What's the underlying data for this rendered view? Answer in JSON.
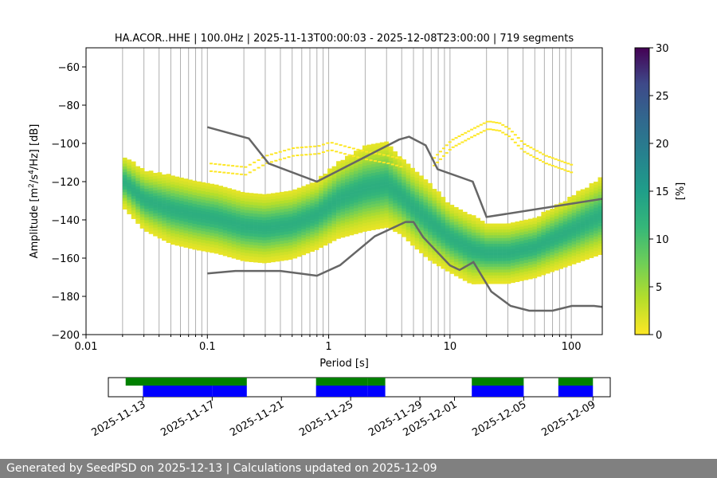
{
  "chart_data": {
    "type": "heatmap",
    "title": "HA.ACOR..HHE | 100.0Hz | 2025-11-13T00:00:03 - 2025-12-08T23:00:00 | 719 segments",
    "xlabel": "Period [s]",
    "ylabel_main": "Amplitude [m",
    "ylabel_sup1": "2",
    "ylabel_mid": "/s",
    "ylabel_sup2": "4",
    "ylabel_end": "/Hz] [dB]",
    "x_scale": "log",
    "xlim": [
      0.01,
      180
    ],
    "ylim": [
      -200,
      -50
    ],
    "grid": true,
    "xticks": [
      {
        "value": 0.01,
        "label": "0.01"
      },
      {
        "value": 0.1,
        "label": "0.1"
      },
      {
        "value": 1,
        "label": "1"
      },
      {
        "value": 10,
        "label": "10"
      },
      {
        "value": 100,
        "label": "100"
      }
    ],
    "yticks": [
      {
        "value": -60,
        "label": "−60"
      },
      {
        "value": -80,
        "label": "−80"
      },
      {
        "value": -100,
        "label": "−100"
      },
      {
        "value": -120,
        "label": "−120"
      },
      {
        "value": -140,
        "label": "−140"
      },
      {
        "value": -160,
        "label": "−160"
      },
      {
        "value": -180,
        "label": "−180"
      },
      {
        "value": -200,
        "label": "−200"
      }
    ],
    "colorbar": {
      "label": "[%]",
      "range": [
        0,
        30
      ],
      "colormap": "viridis_r",
      "ticks": [
        {
          "value": 0,
          "label": "0"
        },
        {
          "value": 5,
          "label": "5"
        },
        {
          "value": 10,
          "label": "10"
        },
        {
          "value": 15,
          "label": "15"
        },
        {
          "value": 20,
          "label": "20"
        },
        {
          "value": 25,
          "label": "25"
        },
        {
          "value": 30,
          "label": "30"
        }
      ]
    },
    "density_ridge": {
      "period": [
        0.02,
        0.03,
        0.05,
        0.08,
        0.12,
        0.2,
        0.3,
        0.5,
        0.8,
        1.2,
        2,
        3,
        4,
        5,
        7,
        10,
        15,
        20,
        30,
        50,
        100,
        180
      ],
      "median_db": [
        -120,
        -130,
        -135,
        -138,
        -140,
        -144,
        -145,
        -143,
        -138,
        -130,
        -124,
        -122,
        -128,
        -134,
        -142,
        -150,
        -156,
        -158,
        -158,
        -155,
        -146,
        -138
      ],
      "spread_db": [
        6,
        7,
        8,
        8,
        8,
        8,
        8,
        8,
        8,
        9,
        10,
        10,
        9,
        9,
        9,
        8,
        8,
        7,
        7,
        7,
        8,
        9
      ]
    },
    "sparse_modes": [
      {
        "period": [
          0.1,
          0.2,
          0.3,
          0.5,
          0.8,
          1,
          1.5,
          2,
          3,
          4
        ],
        "db": [
          -112,
          -114,
          -108,
          -104,
          -103,
          -101,
          -104,
          -106,
          -108,
          -110
        ]
      },
      {
        "period": [
          7,
          10,
          15,
          20,
          25,
          30,
          40,
          60,
          100
        ],
        "db": [
          -110,
          -100,
          -94,
          -90,
          -91,
          -94,
          -102,
          -108,
          -113
        ]
      }
    ],
    "nhnm": {
      "period": [
        0.1,
        0.17,
        0.4,
        0.8,
        1.24,
        2.4,
        4.3,
        5.0,
        6.0,
        10,
        12,
        15.6,
        21.9,
        31.6,
        45,
        70,
        101,
        154,
        180
      ],
      "db": [
        -168,
        -166.7,
        -166.7,
        -169.2,
        -163.7,
        -148.6,
        -141.1,
        -141.1,
        -149,
        -163.8,
        -166.2,
        -162.1,
        -177.5,
        -185,
        -187.5,
        -187.5,
        -185,
        -185,
        -185.5
      ]
    },
    "nlnm": {
      "period": [
        0.1,
        0.22,
        0.32,
        0.8,
        3.8,
        4.6,
        6.3,
        7.9,
        15.4,
        20,
        180
      ],
      "db": [
        -91.5,
        -97.4,
        -110.5,
        -120,
        -98,
        -96.5,
        -101,
        -113.5,
        -120,
        -138.5,
        -129
      ]
    },
    "timeline": {
      "range": [
        "2025-11-11",
        "2025-12-10"
      ],
      "green_spans": [
        [
          "2025-11-12",
          "2025-11-19"
        ],
        [
          "2025-11-23",
          "2025-11-26"
        ],
        [
          "2025-11-26",
          "2025-11-27"
        ],
        [
          "2025-12-02",
          "2025-12-05"
        ],
        [
          "2025-12-07",
          "2025-12-09"
        ]
      ],
      "blue_spans": [
        [
          "2025-11-13",
          "2025-11-17"
        ],
        [
          "2025-11-17",
          "2025-11-19"
        ],
        [
          "2025-11-23",
          "2025-11-26"
        ],
        [
          "2025-11-26",
          "2025-11-27"
        ],
        [
          "2025-12-02",
          "2025-12-05"
        ],
        [
          "2025-12-07",
          "2025-12-09"
        ]
      ],
      "tick_labels": [
        "2025-11-13",
        "2025-11-17",
        "2025-11-21",
        "2025-11-25",
        "2025-11-29",
        "2025-12-01",
        "2025-12-05",
        "2025-12-09"
      ]
    }
  },
  "footer": {
    "text": "Generated by SeedPSD on 2025-12-13 | Calculations updated on 2025-12-09"
  }
}
